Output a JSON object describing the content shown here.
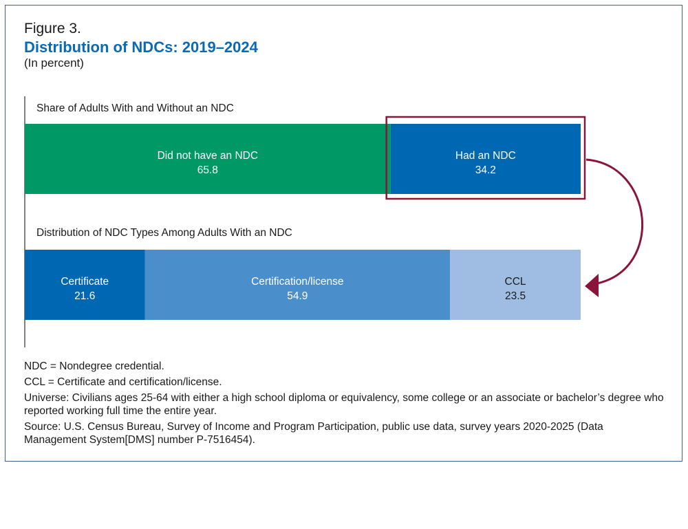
{
  "figure": {
    "label": "Figure 3.",
    "title": "Distribution of NDCs: 2019–2024",
    "units": "(In percent)"
  },
  "chart_data": {
    "type": "bar",
    "orientation": "horizontal-stacked",
    "panels": [
      {
        "title": "Share of Adults With and Without an NDC",
        "segments": [
          {
            "label": "Did not have an NDC",
            "value": 65.8,
            "value_label": "65.8",
            "color": "#009966"
          },
          {
            "label": "Had an NDC",
            "value": 34.2,
            "value_label": "34.2",
            "color": "#0068b3"
          }
        ]
      },
      {
        "title": "Distribution of NDC Types Among Adults With an NDC",
        "segments": [
          {
            "label": "Certificate",
            "value": 21.6,
            "value_label": "21.6",
            "color": "#0068b3"
          },
          {
            "label": "Certification/license",
            "value": 54.9,
            "value_label": "54.9",
            "color": "#4a8fcc"
          },
          {
            "label": "CCL",
            "value": 23.5,
            "value_label": "23.5",
            "color": "#9fbde3"
          }
        ]
      }
    ],
    "highlight_color": "#8a1538",
    "text_color": "#ffffff",
    "dark_text_color": "#1a1a1a"
  },
  "notes": [
    "NDC = Nondegree credential.",
    "CCL = Certificate and certification/license.",
    "Universe: Civilians ages 25-64 with either a high school diploma or equivalency, some college or an associate or bachelor’s degree who reported working full time the entire year.",
    "Source: U.S. Census Bureau, Survey of Income and Program Participation, public use data, survey years 2020-2025 (Data Management System[DMS] number P-7516454)."
  ]
}
